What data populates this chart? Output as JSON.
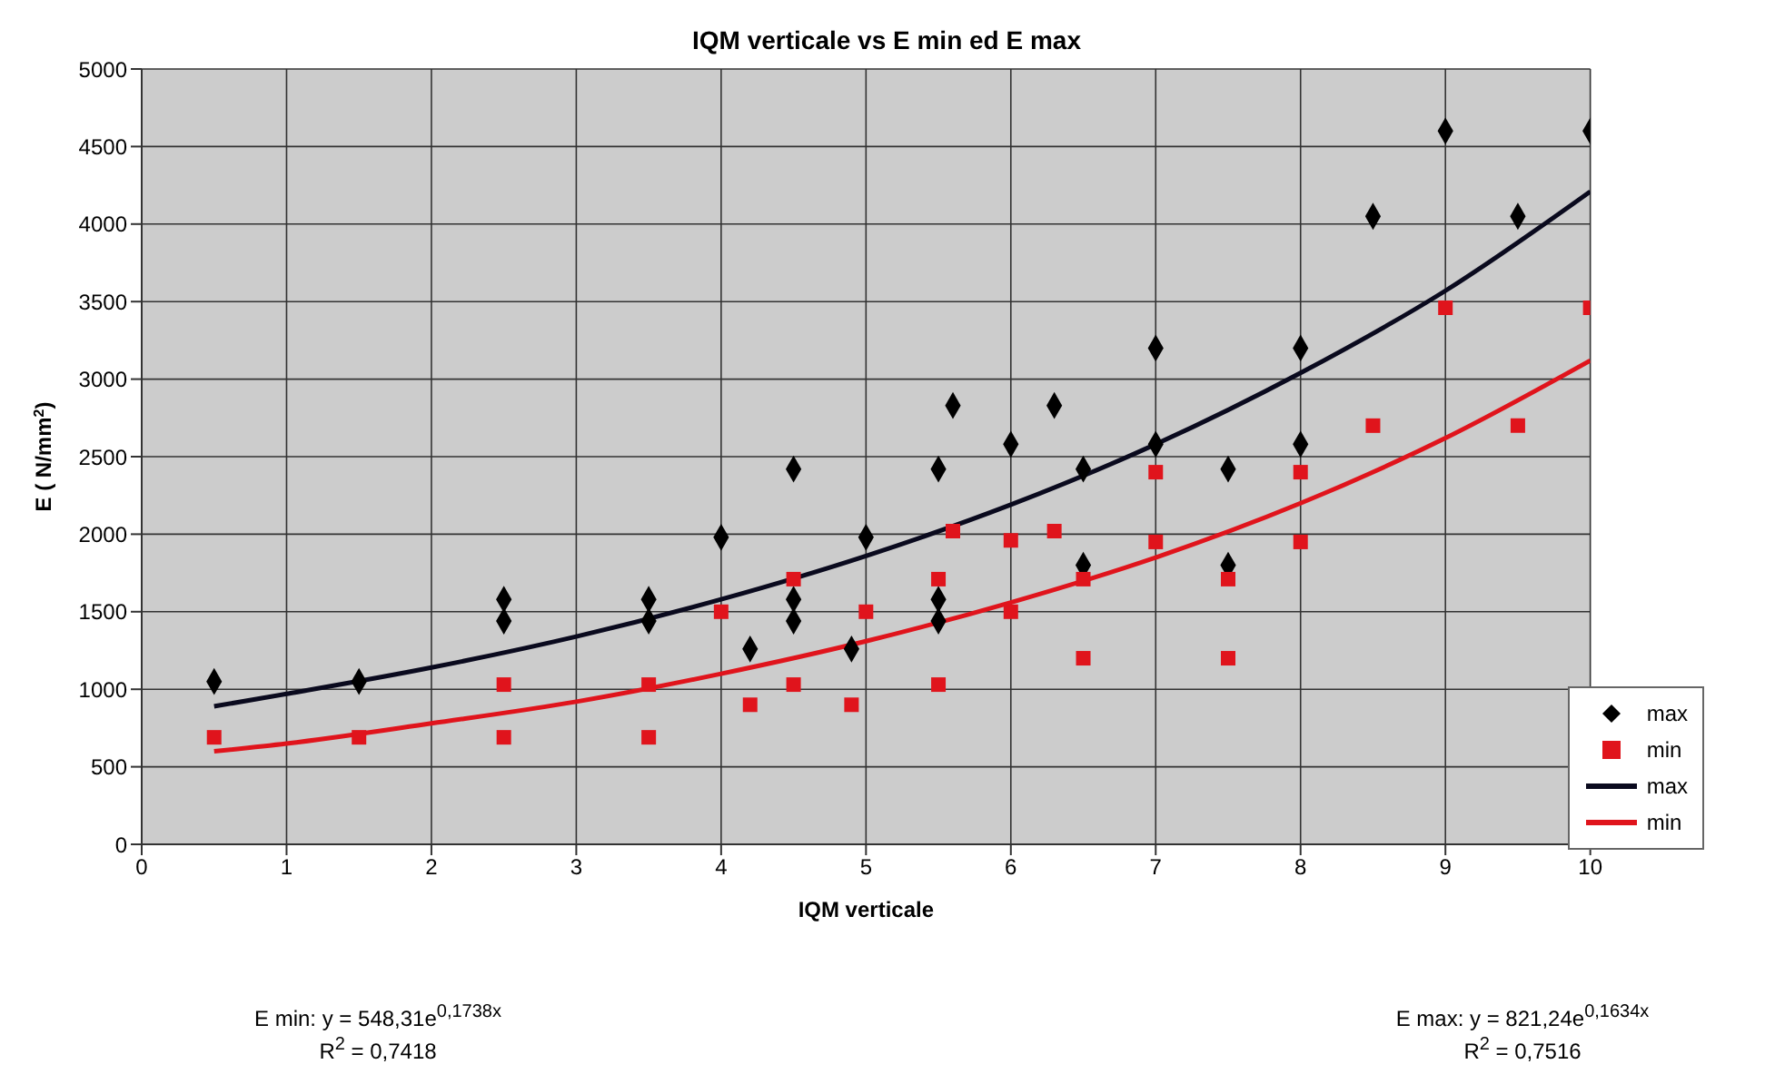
{
  "chart_data": {
    "type": "scatter",
    "title": "IQM verticale vs E min ed E max",
    "xlabel": "IQM verticale",
    "ylabel": "E ( N/mm$^{2}$)",
    "xlim": [
      0,
      10
    ],
    "xticks": [
      0,
      1,
      2,
      3,
      4,
      5,
      6,
      7,
      8,
      9,
      10
    ],
    "ylim": [
      0,
      5000
    ],
    "yticks": [
      0,
      500,
      1000,
      1500,
      2000,
      2500,
      3000,
      3500,
      4000,
      4500,
      5000
    ],
    "grid": true,
    "legend": "bottom right",
    "annotations": [
      "E min: y = 548,31e$^{0,1738x}$",
      "R$^{2}$ = 0,7418",
      "E max: y = 821,24e$^{0,1634x}$",
      "R$^{2}$ = 0,7516"
    ],
    "series": [
      {
        "name": "max",
        "type": "scatter",
        "marker": "diamond",
        "color": "#000000",
        "x": [
          0.5,
          1.5,
          2.5,
          2.5,
          3.5,
          3.5,
          4,
          4.2,
          4.5,
          4.5,
          4.5,
          4.9,
          5,
          5.5,
          5.5,
          5.5,
          5.6,
          6,
          6.3,
          6.5,
          6.5,
          7,
          7,
          7.5,
          7.5,
          8,
          8,
          8.5,
          9,
          9.5,
          10
        ],
        "values": [
          1050,
          1050,
          1580,
          1440,
          1580,
          1440,
          1980,
          1260,
          2420,
          1580,
          1440,
          1260,
          1980,
          2420,
          1580,
          1440,
          2830,
          2580,
          2830,
          2420,
          1800,
          3200,
          2580,
          2420,
          1800,
          3200,
          2580,
          4050,
          4600,
          4050,
          4600
        ]
      },
      {
        "name": "min",
        "type": "scatter",
        "marker": "square",
        "color": "#e0141c",
        "x": [
          0.5,
          1.5,
          2.5,
          2.5,
          3.5,
          3.5,
          4,
          4.2,
          4.5,
          4.5,
          4.9,
          5,
          5.5,
          5.5,
          5.6,
          6,
          6,
          6.3,
          6.5,
          6.5,
          7,
          7,
          7.5,
          7.5,
          8,
          8,
          8.5,
          9,
          9.5,
          10
        ],
        "values": [
          690,
          690,
          1030,
          690,
          1030,
          690,
          1500,
          900,
          1710,
          1030,
          900,
          1500,
          1710,
          1030,
          2020,
          1960,
          1500,
          2020,
          1710,
          1200,
          2400,
          1950,
          1710,
          1200,
          2400,
          1950,
          2700,
          3460,
          2700,
          3460
        ]
      },
      {
        "name": "max",
        "type": "line",
        "marker": "none",
        "color": "#0a0a1e",
        "x": [
          0.5,
          1,
          2,
          3,
          4,
          5,
          6,
          7,
          8,
          9,
          10
        ],
        "values": [
          890,
          970,
          1140,
          1340,
          1580,
          1860,
          2190,
          2580,
          3040,
          3570,
          4210
        ]
      },
      {
        "name": "min",
        "type": "line",
        "marker": "none",
        "color": "#e0141c",
        "x": [
          0.5,
          1,
          2,
          3,
          4,
          5,
          6,
          7,
          8,
          9,
          10
        ],
        "values": [
          600,
          650,
          780,
          920,
          1100,
          1310,
          1560,
          1850,
          2200,
          2620,
          3120
        ]
      }
    ]
  }
}
